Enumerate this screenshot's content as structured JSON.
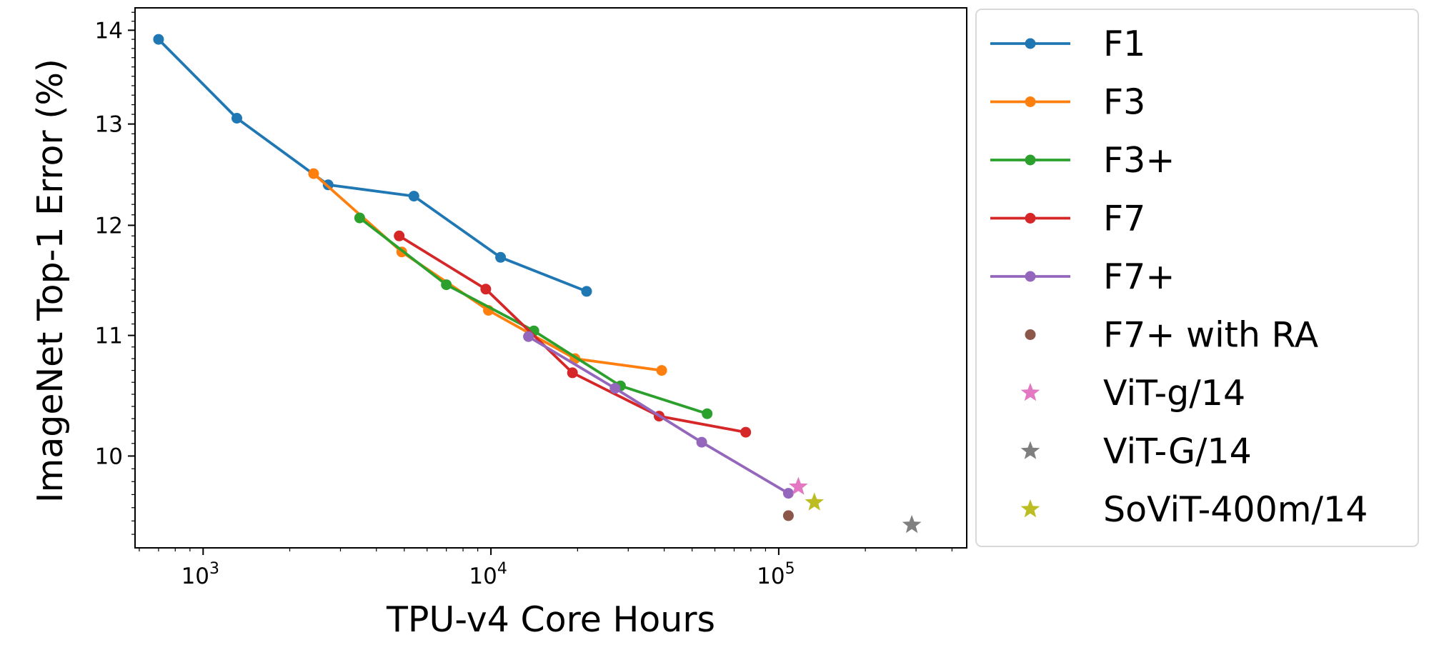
{
  "chart_data": {
    "type": "line",
    "xscale": "log",
    "yscale": "log",
    "xlabel": "TPU-v4 Core Hours",
    "ylabel": "ImageNet Top-1 Error (%)",
    "xlim": [
      580,
      450000
    ],
    "ylim": [
      9.3,
      14.25
    ],
    "xticks": [
      {
        "value": 1000,
        "base": "10",
        "exp": "3"
      },
      {
        "value": 10000,
        "base": "10",
        "exp": "4"
      },
      {
        "value": 100000,
        "base": "10",
        "exp": "5"
      }
    ],
    "yticks": [
      {
        "value": 10,
        "label": "10"
      },
      {
        "value": 11,
        "label": "11"
      },
      {
        "value": 12,
        "label": "12"
      },
      {
        "value": 13,
        "label": "13"
      },
      {
        "value": 14,
        "label": "14"
      }
    ],
    "series": [
      {
        "name": "F1",
        "color": "#1f77b4",
        "kind": "line",
        "x": [
          700,
          1310,
          2720,
          5400,
          10800,
          21500
        ],
        "y": [
          13.9,
          13.06,
          12.39,
          12.28,
          11.7,
          11.39
        ]
      },
      {
        "name": "F3",
        "color": "#ff7f0e",
        "kind": "line",
        "x": [
          2420,
          4900,
          9800,
          19600,
          39200
        ],
        "y": [
          12.5,
          11.75,
          11.22,
          10.8,
          10.7
        ]
      },
      {
        "name": "F3+",
        "color": "#2ca02c",
        "kind": "line",
        "x": [
          3500,
          7000,
          14100,
          28200,
          56400
        ],
        "y": [
          12.07,
          11.45,
          11.04,
          10.57,
          10.34
        ]
      },
      {
        "name": "F7",
        "color": "#d62728",
        "kind": "line",
        "x": [
          4800,
          9600,
          19200,
          38400,
          76800
        ],
        "y": [
          11.9,
          11.41,
          10.68,
          10.32,
          10.19
        ]
      },
      {
        "name": "F7+",
        "color": "#9467bd",
        "kind": "line",
        "x": [
          13500,
          27000,
          54000,
          108000
        ],
        "y": [
          10.99,
          10.55,
          10.11,
          9.71
        ]
      },
      {
        "name": "F7+ with RA",
        "color": "#8c564b",
        "kind": "dot",
        "x": [
          108000
        ],
        "y": [
          9.54
        ]
      },
      {
        "name": "ViT-g/14",
        "color": "#e377c2",
        "kind": "star",
        "x": [
          117000
        ],
        "y": [
          9.76
        ]
      },
      {
        "name": "ViT-G/14",
        "color": "#7f7f7f",
        "kind": "star",
        "x": [
          290000
        ],
        "y": [
          9.47
        ]
      },
      {
        "name": "SoViT-400m/14",
        "color": "#bcbd22",
        "kind": "star",
        "x": [
          133000
        ],
        "y": [
          9.64
        ]
      }
    ],
    "legend": "outside-right"
  }
}
